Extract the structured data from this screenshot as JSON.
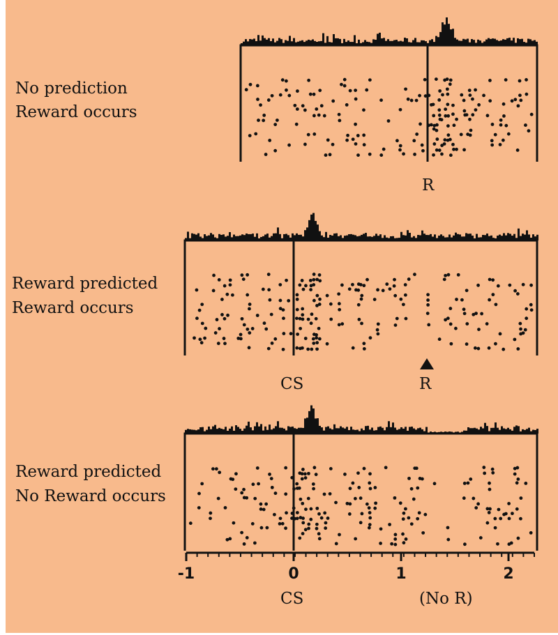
{
  "panels": [
    {
      "label_lines": [
        "No prediction",
        "Reward occurs"
      ],
      "event_labels": [
        "R"
      ]
    },
    {
      "label_lines": [
        "Reward predicted",
        "Reward occurs"
      ],
      "event_labels": [
        "CS",
        "R"
      ]
    },
    {
      "label_lines": [
        "Reward predicted",
        "No Reward occurs"
      ],
      "event_labels": [
        "CS",
        "(No R)"
      ]
    }
  ],
  "axis": {
    "ticks": [
      -1,
      0,
      1,
      2
    ],
    "range": [
      -1,
      2.24
    ]
  }
}
